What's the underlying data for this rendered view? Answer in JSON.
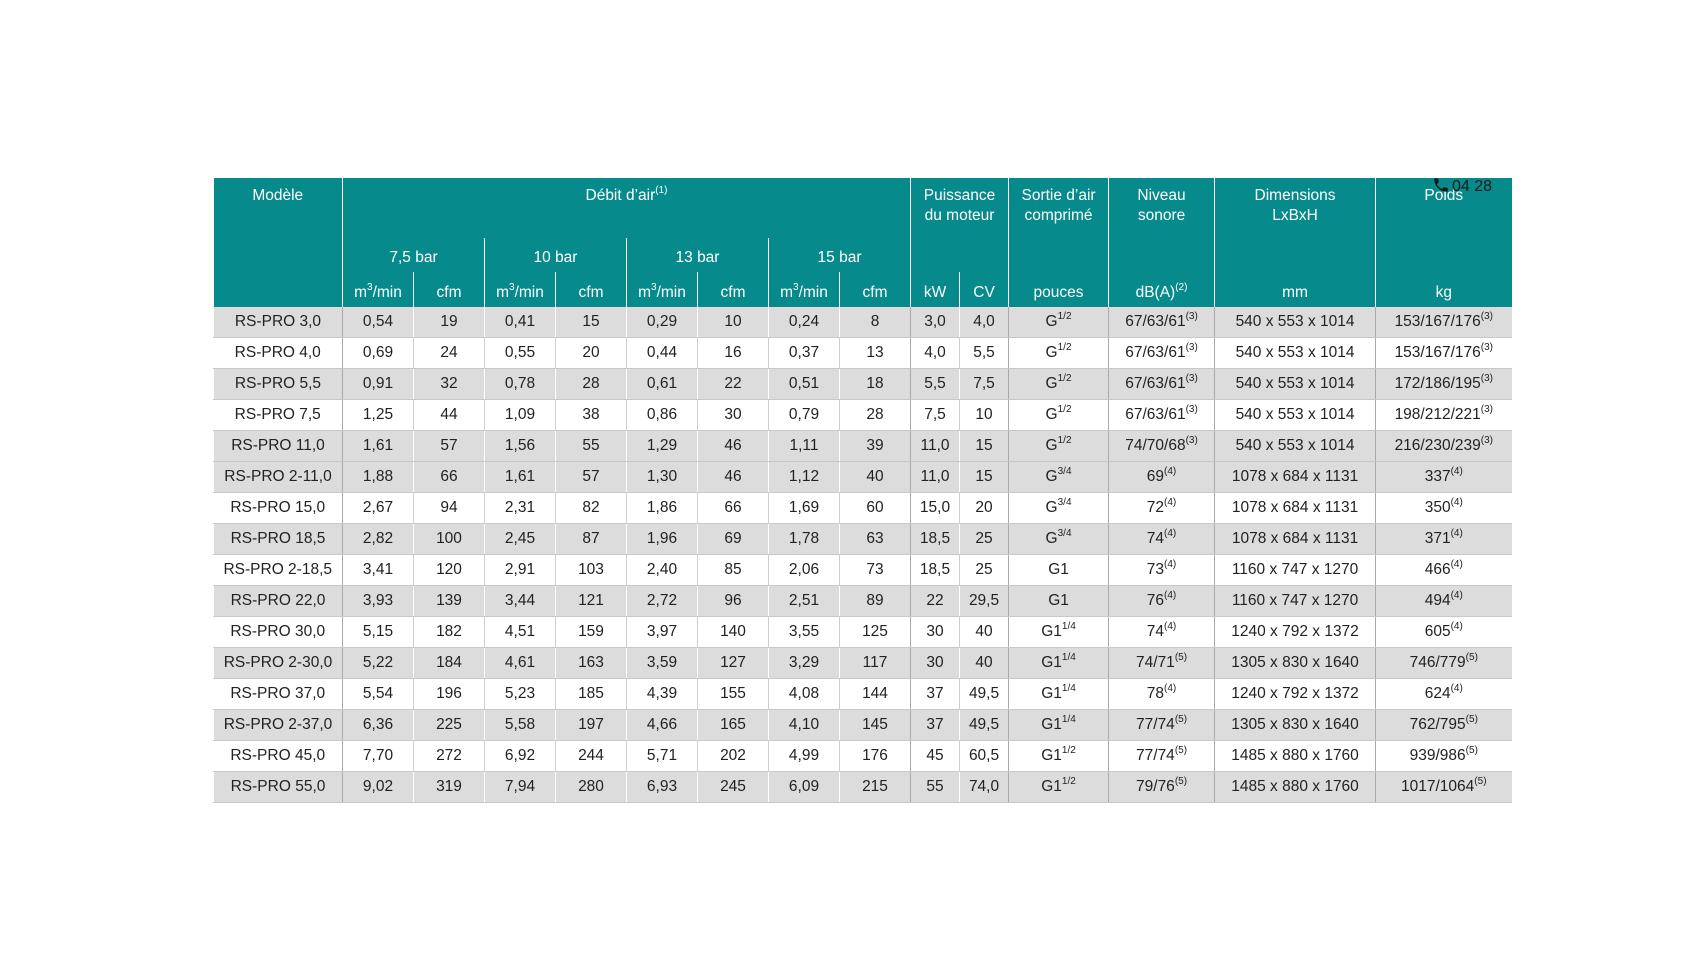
{
  "overlay": {
    "phone_text": "04 28"
  },
  "colors": {
    "header_bg": "#078a8b",
    "header_text": "#ffffff",
    "row_shade": "#dcdcdc",
    "row_plain": "#ffffff"
  },
  "header": {
    "model": "Modèle",
    "airflow": "Débit d’air",
    "airflow_note": "(1)",
    "pressures": [
      "7,5 bar",
      "10 bar",
      "13 bar",
      "15 bar"
    ],
    "flow_unit_m3": "m",
    "flow_unit_m3_sup": "3",
    "flow_unit_m3_tail": "/min",
    "flow_unit_cfm": "cfm",
    "power_line1": "Puissance",
    "power_line2": "du moteur",
    "power_kw": "kW",
    "power_cv": "CV",
    "outlet_line1": "Sortie d’air",
    "outlet_line2": "comprimé",
    "outlet_unit": "pouces",
    "noise_line1": "Niveau",
    "noise_line2": "sonore",
    "noise_unit": "dB(A)",
    "noise_unit_note": "(2)",
    "dims_line1": "Dimensions",
    "dims_line2": "LxBxH",
    "dims_unit": "mm",
    "weight": "Poids",
    "weight_unit": "kg"
  },
  "rows": [
    {
      "model": "RS-PRO 3,0",
      "f75m": "0,54",
      "f75c": "19",
      "f10m": "0,41",
      "f10c": "15",
      "f13m": "0,29",
      "f13c": "10",
      "f15m": "0,24",
      "f15c": "8",
      "kw": "3,0",
      "cv": "4,0",
      "outlet": "G",
      "outlet_sup": "1/2",
      "noise": "67/63/61",
      "noise_sup": "(3)",
      "dims": "540 x 553 x 1014",
      "weight": "153/167/176",
      "weight_sup": "(3)"
    },
    {
      "model": "RS-PRO 4,0",
      "f75m": "0,69",
      "f75c": "24",
      "f10m": "0,55",
      "f10c": "20",
      "f13m": "0,44",
      "f13c": "16",
      "f15m": "0,37",
      "f15c": "13",
      "kw": "4,0",
      "cv": "5,5",
      "outlet": "G",
      "outlet_sup": "1/2",
      "noise": "67/63/61",
      "noise_sup": "(3)",
      "dims": "540 x 553 x 1014",
      "weight": "153/167/176",
      "weight_sup": "(3)"
    },
    {
      "model": "RS-PRO 5,5",
      "f75m": "0,91",
      "f75c": "32",
      "f10m": "0,78",
      "f10c": "28",
      "f13m": "0,61",
      "f13c": "22",
      "f15m": "0,51",
      "f15c": "18",
      "kw": "5,5",
      "cv": "7,5",
      "outlet": "G",
      "outlet_sup": "1/2",
      "noise": "67/63/61",
      "noise_sup": "(3)",
      "dims": "540 x 553 x 1014",
      "weight": "172/186/195",
      "weight_sup": "(3)"
    },
    {
      "model": "RS-PRO 7,5",
      "f75m": "1,25",
      "f75c": "44",
      "f10m": "1,09",
      "f10c": "38",
      "f13m": "0,86",
      "f13c": "30",
      "f15m": "0,79",
      "f15c": "28",
      "kw": "7,5",
      "cv": "10",
      "outlet": "G",
      "outlet_sup": "1/2",
      "noise": "67/63/61",
      "noise_sup": "(3)",
      "dims": "540 x 553 x 1014",
      "weight": "198/212/221",
      "weight_sup": "(3)"
    },
    {
      "model": "RS-PRO 11,0",
      "f75m": "1,61",
      "f75c": "57",
      "f10m": "1,56",
      "f10c": "55",
      "f13m": "1,29",
      "f13c": "46",
      "f15m": "1,11",
      "f15c": "39",
      "kw": "11,0",
      "cv": "15",
      "outlet": "G",
      "outlet_sup": "1/2",
      "noise": "74/70/68",
      "noise_sup": "(3)",
      "dims": "540 x 553 x 1014",
      "weight": "216/230/239",
      "weight_sup": "(3)"
    },
    {
      "model": "RS-PRO 2-11,0",
      "f75m": "1,88",
      "f75c": "66",
      "f10m": "1,61",
      "f10c": "57",
      "f13m": "1,30",
      "f13c": "46",
      "f15m": "1,12",
      "f15c": "40",
      "kw": "11,0",
      "cv": "15",
      "outlet": "G",
      "outlet_sup": "3/4",
      "noise": "69",
      "noise_sup": "(4)",
      "dims": "1078 x 684 x 1131",
      "weight": "337",
      "weight_sup": "(4)"
    },
    {
      "model": "RS-PRO 15,0",
      "f75m": "2,67",
      "f75c": "94",
      "f10m": "2,31",
      "f10c": "82",
      "f13m": "1,86",
      "f13c": "66",
      "f15m": "1,69",
      "f15c": "60",
      "kw": "15,0",
      "cv": "20",
      "outlet": "G",
      "outlet_sup": "3/4",
      "noise": "72",
      "noise_sup": "(4)",
      "dims": "1078 x 684 x 1131",
      "weight": "350",
      "weight_sup": "(4)"
    },
    {
      "model": "RS-PRO 18,5",
      "f75m": "2,82",
      "f75c": "100",
      "f10m": "2,45",
      "f10c": "87",
      "f13m": "1,96",
      "f13c": "69",
      "f15m": "1,78",
      "f15c": "63",
      "kw": "18,5",
      "cv": "25",
      "outlet": "G",
      "outlet_sup": "3/4",
      "noise": "74",
      "noise_sup": "(4)",
      "dims": "1078 x 684 x 1131",
      "weight": "371",
      "weight_sup": "(4)"
    },
    {
      "model": "RS-PRO 2-18,5",
      "f75m": "3,41",
      "f75c": "120",
      "f10m": "2,91",
      "f10c": "103",
      "f13m": "2,40",
      "f13c": "85",
      "f15m": "2,06",
      "f15c": "73",
      "kw": "18,5",
      "cv": "25",
      "outlet": "G1",
      "outlet_sup": "",
      "noise": "73",
      "noise_sup": "(4)",
      "dims": "1160 x 747 x 1270",
      "weight": "466",
      "weight_sup": "(4)"
    },
    {
      "model": "RS-PRO 22,0",
      "f75m": "3,93",
      "f75c": "139",
      "f10m": "3,44",
      "f10c": "121",
      "f13m": "2,72",
      "f13c": "96",
      "f15m": "2,51",
      "f15c": "89",
      "kw": "22",
      "cv": "29,5",
      "outlet": "G1",
      "outlet_sup": "",
      "noise": "76",
      "noise_sup": "(4)",
      "dims": "1160 x 747 x 1270",
      "weight": "494",
      "weight_sup": "(4)"
    },
    {
      "model": "RS-PRO 30,0",
      "f75m": "5,15",
      "f75c": "182",
      "f10m": "4,51",
      "f10c": "159",
      "f13m": "3,97",
      "f13c": "140",
      "f15m": "3,55",
      "f15c": "125",
      "kw": "30",
      "cv": "40",
      "outlet": "G1",
      "outlet_sup": "1/4",
      "noise": "74",
      "noise_sup": "(4)",
      "dims": "1240 x 792 x 1372",
      "weight": "605",
      "weight_sup": "(4)"
    },
    {
      "model": "RS-PRO 2-30,0",
      "f75m": "5,22",
      "f75c": "184",
      "f10m": "4,61",
      "f10c": "163",
      "f13m": "3,59",
      "f13c": "127",
      "f15m": "3,29",
      "f15c": "117",
      "kw": "30",
      "cv": "40",
      "outlet": "G1",
      "outlet_sup": "1/4",
      "noise": "74/71",
      "noise_sup": "(5)",
      "dims": "1305 x 830 x 1640",
      "weight": "746/779",
      "weight_sup": "(5)"
    },
    {
      "model": "RS-PRO 37,0",
      "f75m": "5,54",
      "f75c": "196",
      "f10m": "5,23",
      "f10c": "185",
      "f13m": "4,39",
      "f13c": "155",
      "f15m": "4,08",
      "f15c": "144",
      "kw": "37",
      "cv": "49,5",
      "outlet": "G1",
      "outlet_sup": "1/4",
      "noise": "78",
      "noise_sup": "(4)",
      "dims": "1240 x 792 x 1372",
      "weight": "624",
      "weight_sup": "(4)"
    },
    {
      "model": "RS-PRO 2-37,0",
      "f75m": "6,36",
      "f75c": "225",
      "f10m": "5,58",
      "f10c": "197",
      "f13m": "4,66",
      "f13c": "165",
      "f15m": "4,10",
      "f15c": "145",
      "kw": "37",
      "cv": "49,5",
      "outlet": "G1",
      "outlet_sup": "1/4",
      "noise": "77/74",
      "noise_sup": "(5)",
      "dims": "1305 x 830 x 1640",
      "weight": "762/795",
      "weight_sup": "(5)"
    },
    {
      "model": "RS-PRO 45,0",
      "f75m": "7,70",
      "f75c": "272",
      "f10m": "6,92",
      "f10c": "244",
      "f13m": "5,71",
      "f13c": "202",
      "f15m": "4,99",
      "f15c": "176",
      "kw": "45",
      "cv": "60,5",
      "outlet": "G1",
      "outlet_sup": "1/2",
      "noise": "77/74",
      "noise_sup": "(5)",
      "dims": "1485 x 880 x 1760",
      "weight": "939/986",
      "weight_sup": "(5)"
    },
    {
      "model": "RS-PRO 55,0",
      "f75m": "9,02",
      "f75c": "319",
      "f10m": "7,94",
      "f10c": "280",
      "f13m": "6,93",
      "f13c": "245",
      "f15m": "6,09",
      "f15c": "215",
      "kw": "55",
      "cv": "74,0",
      "outlet": "G1",
      "outlet_sup": "1/2",
      "noise": "79/76",
      "noise_sup": "(5)",
      "dims": "1485 x 880 x 1760",
      "weight": "1017/1064",
      "weight_sup": "(5)"
    }
  ]
}
